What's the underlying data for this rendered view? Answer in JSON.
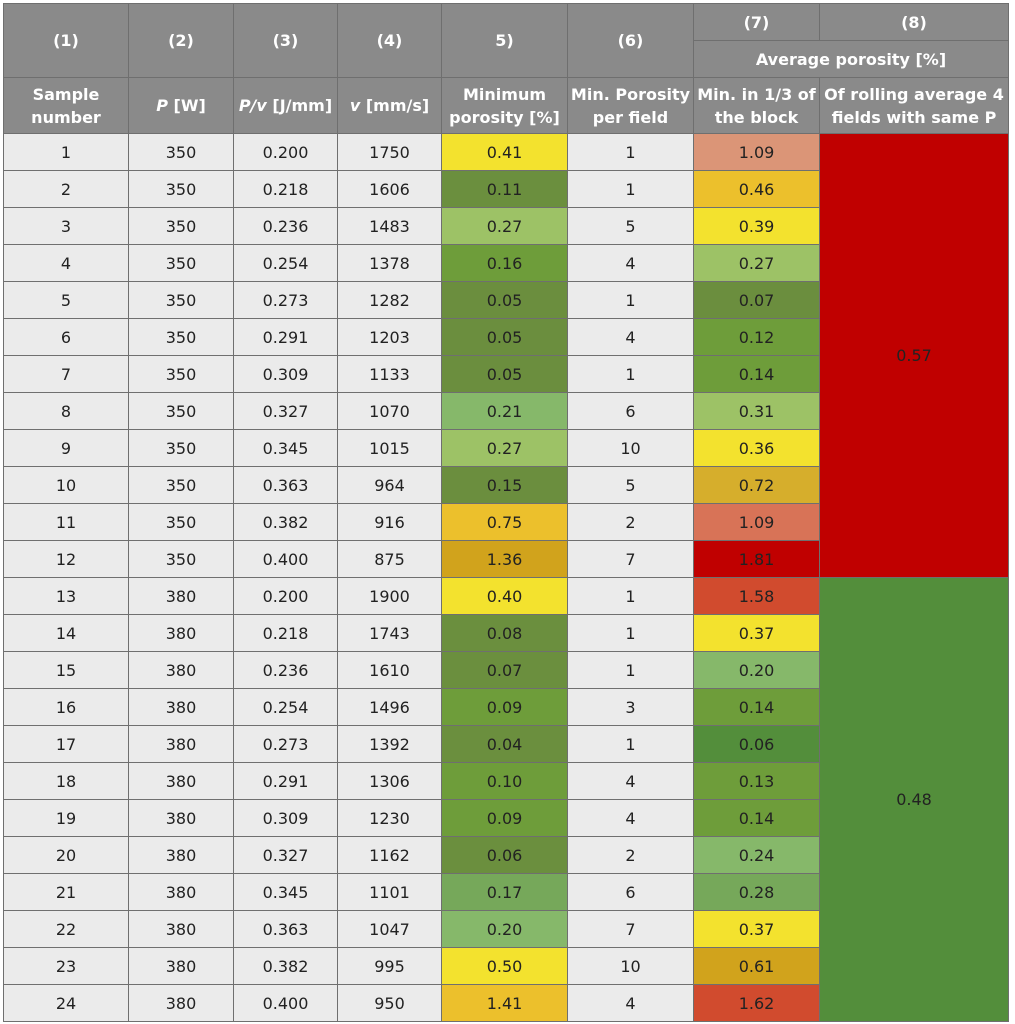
{
  "colors": {
    "header_bg": "#8a8a8a",
    "cell_bg": "#ebebeb",
    "group_350_bg": "#c00000",
    "group_380_bg": "#538e3b"
  },
  "headers": {
    "col_numbers": [
      "(1)",
      "(2)",
      "(3)",
      "(4)",
      "5)",
      "(6)",
      "(7)",
      "(8)"
    ],
    "average_porosity": "Average porosity [%]",
    "sample_number": "Sample number",
    "power_symbol": "P",
    "power_unit": " [W]",
    "energy_symbol": "P/v",
    "energy_unit": " [J/mm]",
    "velocity_symbol": "v",
    "velocity_unit": " [mm/s]",
    "min_porosity": "Minimum porosity [%]",
    "min_porosity_per_field": "Min. Porosity per field",
    "min_third_block": "Min. in 1/3 of the block",
    "rolling_average": "Of rolling average 4 fields with same P"
  },
  "groups": [
    {
      "avg": "0.57",
      "color": "#c00000"
    },
    {
      "avg": "0.48",
      "color": "#538e3b"
    }
  ],
  "rows": [
    {
      "n": "1",
      "p": "350",
      "pv": "0.200",
      "v": "1750",
      "min": "0.41",
      "min_color": "#f3e22e",
      "field": "1",
      "third": "1.09",
      "third_color": "#db9577"
    },
    {
      "n": "2",
      "p": "350",
      "pv": "0.218",
      "v": "1606",
      "min": "0.11",
      "min_color": "#6b8f3e",
      "field": "1",
      "third": "0.46",
      "third_color": "#ecc02c"
    },
    {
      "n": "3",
      "p": "350",
      "pv": "0.236",
      "v": "1483",
      "min": "0.27",
      "min_color": "#9dc266",
      "field": "5",
      "third": "0.39",
      "third_color": "#f3e22e"
    },
    {
      "n": "4",
      "p": "350",
      "pv": "0.254",
      "v": "1378",
      "min": "0.16",
      "min_color": "#6e9d3a",
      "field": "4",
      "third": "0.27",
      "third_color": "#9dc266"
    },
    {
      "n": "5",
      "p": "350",
      "pv": "0.273",
      "v": "1282",
      "min": "0.05",
      "min_color": "#6b8e3e",
      "field": "1",
      "third": "0.07",
      "third_color": "#6b8e3e"
    },
    {
      "n": "6",
      "p": "350",
      "pv": "0.291",
      "v": "1203",
      "min": "0.05",
      "min_color": "#6b8e3e",
      "field": "4",
      "third": "0.12",
      "third_color": "#6e9d3a"
    },
    {
      "n": "7",
      "p": "350",
      "pv": "0.309",
      "v": "1133",
      "min": "0.05",
      "min_color": "#6b8e3e",
      "field": "1",
      "third": "0.14",
      "third_color": "#6e9d3a"
    },
    {
      "n": "8",
      "p": "350",
      "pv": "0.327",
      "v": "1070",
      "min": "0.21",
      "min_color": "#86b86a",
      "field": "6",
      "third": "0.31",
      "third_color": "#9dc266"
    },
    {
      "n": "9",
      "p": "350",
      "pv": "0.345",
      "v": "1015",
      "min": "0.27",
      "min_color": "#9dc266",
      "field": "10",
      "third": "0.36",
      "third_color": "#f3e22e"
    },
    {
      "n": "10",
      "p": "350",
      "pv": "0.363",
      "v": "964",
      "min": "0.15",
      "min_color": "#6b8e3e",
      "field": "5",
      "third": "0.72",
      "third_color": "#d6ae2c"
    },
    {
      "n": "11",
      "p": "350",
      "pv": "0.382",
      "v": "916",
      "min": "0.75",
      "min_color": "#ecc02c",
      "field": "2",
      "third": "1.09",
      "third_color": "#d87357"
    },
    {
      "n": "12",
      "p": "350",
      "pv": "0.400",
      "v": "875",
      "min": "1.36",
      "min_color": "#d1a31c",
      "field": "7",
      "third": "1.81",
      "third_color": "#c00000"
    },
    {
      "n": "13",
      "p": "380",
      "pv": "0.200",
      "v": "1900",
      "min": "0.40",
      "min_color": "#f3e22e",
      "field": "1",
      "third": "1.58",
      "third_color": "#d14b2e"
    },
    {
      "n": "14",
      "p": "380",
      "pv": "0.218",
      "v": "1743",
      "min": "0.08",
      "min_color": "#6b8f3e",
      "field": "1",
      "third": "0.37",
      "third_color": "#f3e22e"
    },
    {
      "n": "15",
      "p": "380",
      "pv": "0.236",
      "v": "1610",
      "min": "0.07",
      "min_color": "#6b8f3e",
      "field": "1",
      "third": "0.20",
      "third_color": "#86b86a"
    },
    {
      "n": "16",
      "p": "380",
      "pv": "0.254",
      "v": "1496",
      "min": "0.09",
      "min_color": "#6e9d3a",
      "field": "3",
      "third": "0.14",
      "third_color": "#6e9d3a"
    },
    {
      "n": "17",
      "p": "380",
      "pv": "0.273",
      "v": "1392",
      "min": "0.04",
      "min_color": "#6b8f3e",
      "field": "1",
      "third": "0.06",
      "third_color": "#538e3b"
    },
    {
      "n": "18",
      "p": "380",
      "pv": "0.291",
      "v": "1306",
      "min": "0.10",
      "min_color": "#6e9d3a",
      "field": "4",
      "third": "0.13",
      "third_color": "#6e9d3a"
    },
    {
      "n": "19",
      "p": "380",
      "pv": "0.309",
      "v": "1230",
      "min": "0.09",
      "min_color": "#6e9d3a",
      "field": "4",
      "third": "0.14",
      "third_color": "#6e9d3a"
    },
    {
      "n": "20",
      "p": "380",
      "pv": "0.327",
      "v": "1162",
      "min": "0.06",
      "min_color": "#6b8f3e",
      "field": "2",
      "third": "0.24",
      "third_color": "#86b86a"
    },
    {
      "n": "21",
      "p": "380",
      "pv": "0.345",
      "v": "1101",
      "min": "0.17",
      "min_color": "#76a85a",
      "field": "6",
      "third": "0.28",
      "third_color": "#76a85a"
    },
    {
      "n": "22",
      "p": "380",
      "pv": "0.363",
      "v": "1047",
      "min": "0.20",
      "min_color": "#86b86a",
      "field": "7",
      "third": "0.37",
      "third_color": "#f3e22e"
    },
    {
      "n": "23",
      "p": "380",
      "pv": "0.382",
      "v": "995",
      "min": "0.50",
      "min_color": "#f3e22e",
      "field": "10",
      "third": "0.61",
      "third_color": "#d1a31c"
    },
    {
      "n": "24",
      "p": "380",
      "pv": "0.400",
      "v": "950",
      "min": "1.41",
      "min_color": "#ecc02c",
      "field": "4",
      "third": "1.62",
      "third_color": "#d14b2e"
    }
  ]
}
